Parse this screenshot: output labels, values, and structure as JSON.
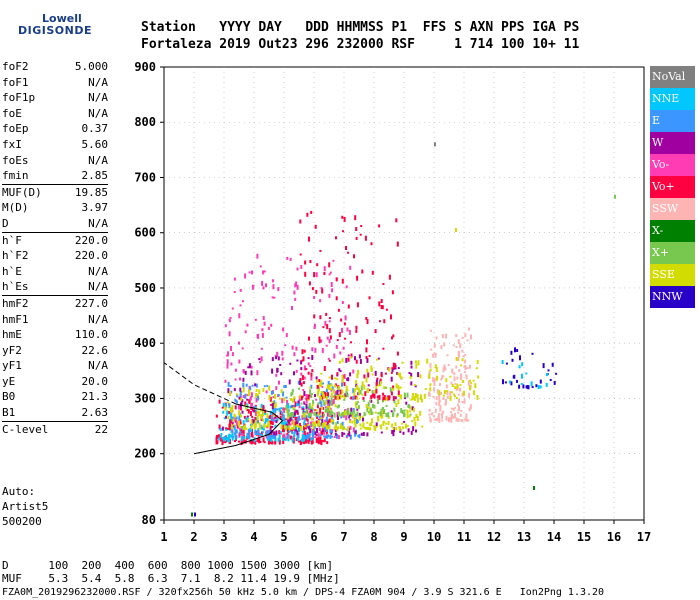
{
  "logo": {
    "line1": "Lowell",
    "line2": "DIGISONDE"
  },
  "header": {
    "row1": "Station   YYYY DAY   DDD HHMMSS P1  FFS S AXN PPS IGA PS",
    "row2": "Fortaleza 2019 Out23 296 232000 RSF     1 714 100 10+ 11"
  },
  "params": [
    [
      [
        "foF2",
        "5.000"
      ],
      [
        "foF1",
        "N/A"
      ],
      [
        "foF1p",
        "N/A"
      ],
      [
        "foE",
        "N/A"
      ],
      [
        "foEp",
        "0.37"
      ],
      [
        "fxI",
        "5.60"
      ],
      [
        "foEs",
        "N/A"
      ],
      [
        "fmin",
        "2.85"
      ]
    ],
    [
      [
        "MUF(D)",
        "19.85"
      ],
      [
        "M(D)",
        "3.97"
      ],
      [
        "D",
        "N/A"
      ]
    ],
    [
      [
        "h`F",
        "220.0"
      ],
      [
        "h`F2",
        "220.0"
      ],
      [
        "h`E",
        "N/A"
      ],
      [
        "h`Es",
        "N/A"
      ]
    ],
    [
      [
        "hmF2",
        "227.0"
      ],
      [
        "hmF1",
        "N/A"
      ],
      [
        "hmE",
        "110.0"
      ],
      [
        "yF2",
        "22.6"
      ],
      [
        "yF1",
        "N/A"
      ],
      [
        "yE",
        "20.0"
      ],
      [
        "B0",
        "21.3"
      ],
      [
        "B1",
        "2.63"
      ]
    ],
    [
      [
        "C-level",
        "22"
      ]
    ]
  ],
  "notes": [
    "Auto:",
    "Artist5",
    "500200"
  ],
  "bottom": {
    "d_row": "D      100  200  400  600  800 1000 1500 3000 [km]",
    "muf_row": "MUF    5.3  5.4  5.8  6.3  7.1  8.2 11.4 19.9 [MHz]",
    "file_row": "FZA0M_2019296232000.RSF / 320fx256h 50 kHz 5.0 km / DPS-4 FZA0M 904 / 3.9 S 321.6 E   Ion2Png 1.3.20"
  },
  "legend": [
    {
      "label": "NoVal",
      "color": "#808080"
    },
    {
      "label": "NNE",
      "color": "#00c8ff"
    },
    {
      "label": "E",
      "color": "#3c96ff"
    },
    {
      "label": "W",
      "color": "#a000a0"
    },
    {
      "label": "Vo-",
      "color": "#ff3cb4"
    },
    {
      "label": "Vo+",
      "color": "#ff0040"
    },
    {
      "label": "SSW",
      "color": "#ffb4b4"
    },
    {
      "label": "X-",
      "color": "#008000"
    },
    {
      "label": "X+",
      "color": "#78c850"
    },
    {
      "label": "SSE",
      "color": "#d2dc00"
    },
    {
      "label": "NNW",
      "color": "#2800c8"
    }
  ],
  "chart_data": {
    "type": "scatter",
    "xlim": [
      1,
      17
    ],
    "ylim": [
      80,
      900
    ],
    "x_ticks": [
      1,
      2,
      3,
      4,
      5,
      6,
      7,
      8,
      9,
      10,
      11,
      12,
      13,
      14,
      15,
      16,
      17
    ],
    "y_ticks": [
      80,
      200,
      300,
      400,
      500,
      600,
      700,
      800,
      900
    ],
    "clusters": [
      {
        "name": "Vo+",
        "x": [
          2.7,
          6.5
        ],
        "y": [
          220,
          300
        ],
        "n": 260
      },
      {
        "name": "Vo-",
        "x": [
          3.0,
          7.3
        ],
        "y": [
          230,
          560
        ],
        "n": 260
      },
      {
        "name": "NNE",
        "x": [
          2.8,
          6.0
        ],
        "y": [
          225,
          290
        ],
        "n": 140
      },
      {
        "name": "E",
        "x": [
          3.0,
          7.5
        ],
        "y": [
          230,
          330
        ],
        "n": 150
      },
      {
        "name": "W",
        "x": [
          2.9,
          9.5
        ],
        "y": [
          235,
          380
        ],
        "n": 160
      },
      {
        "name": "SSE",
        "x": [
          3.0,
          9.6
        ],
        "y": [
          245,
          320
        ],
        "n": 230
      },
      {
        "name": "X+",
        "x": [
          5.0,
          9.2
        ],
        "y": [
          270,
          320
        ],
        "n": 110
      },
      {
        "name": "SSW",
        "x": [
          9.8,
          11.2
        ],
        "y": [
          260,
          430
        ],
        "n": 150
      },
      {
        "name": "NNW",
        "x": [
          12.2,
          14.1
        ],
        "y": [
          320,
          390
        ],
        "n": 28
      },
      {
        "name": "NNE",
        "x": [
          12.2,
          13.8
        ],
        "y": [
          320,
          380
        ],
        "n": 12
      },
      {
        "name": "Vo+",
        "x": [
          5.5,
          8.8
        ],
        "y": [
          300,
          650
        ],
        "n": 160
      },
      {
        "name": "SSE",
        "x": [
          6.0,
          11.5
        ],
        "y": [
          300,
          380
        ],
        "n": 120
      }
    ],
    "outliers": [
      {
        "x": 1.9,
        "y": 90,
        "name": "X-"
      },
      {
        "x": 2.0,
        "y": 90,
        "name": "NNW"
      },
      {
        "x": 10.0,
        "y": 760,
        "name": "NoVal"
      },
      {
        "x": 16.0,
        "y": 665,
        "name": "X+"
      },
      {
        "x": 13.3,
        "y": 138,
        "name": "X-"
      },
      {
        "x": 10.7,
        "y": 605,
        "name": "SSE"
      }
    ],
    "profile": [
      [
        2,
        200
      ],
      [
        3.4,
        215
      ],
      [
        4.5,
        235
      ],
      [
        4.95,
        260
      ],
      [
        4.6,
        275
      ],
      [
        3.4,
        290
      ],
      [
        2,
        325
      ],
      [
        1,
        365
      ]
    ]
  }
}
